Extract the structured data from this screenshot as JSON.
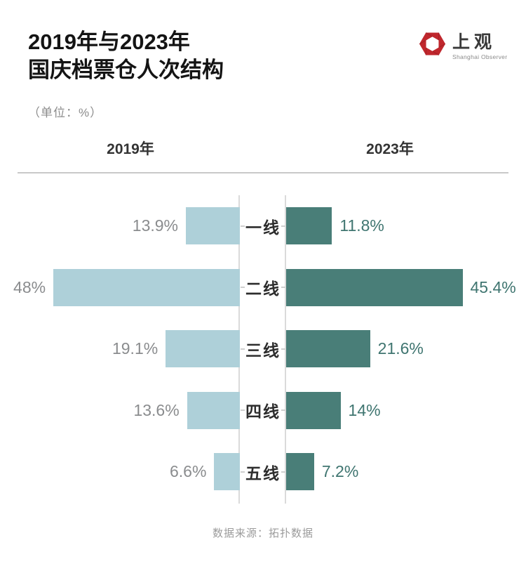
{
  "header": {
    "title_line1": "2019年与2023年",
    "title_line2": "国庆档票仓人次结构",
    "unit_note": "（单位：%）",
    "logo": {
      "name": "上观",
      "subtitle": "Shanghai Observer",
      "brand_color": "#c0272d"
    }
  },
  "chart_data": {
    "type": "bar",
    "orientation": "horizontal-bidirectional",
    "title": "2019年与2023年国庆档票仓人次结构",
    "unit": "%",
    "categories": [
      "一线",
      "二线",
      "三线",
      "四线",
      "五线"
    ],
    "series": [
      {
        "name": "2019年",
        "values": [
          13.9,
          48,
          19.1,
          13.6,
          6.6
        ],
        "labels": [
          "13.9%",
          "48%",
          "19.1%",
          "13.6%",
          "6.6%"
        ],
        "color": "#aed0d9",
        "label_color": "#8a8c8e"
      },
      {
        "name": "2023年",
        "values": [
          11.8,
          45.4,
          21.6,
          14,
          7.2
        ],
        "labels": [
          "11.8%",
          "45.4%",
          "21.6%",
          "14%",
          "7.2%"
        ],
        "color": "#497e78",
        "label_color": "#3f7570"
      }
    ],
    "xlim": [
      0,
      50
    ],
    "grid": false,
    "legend_position": "top-as-column-headers"
  },
  "footer": {
    "source": "数据来源：拓扑数据"
  }
}
